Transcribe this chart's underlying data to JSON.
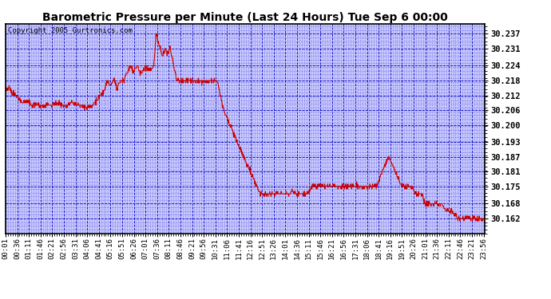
{
  "title": "Barometric Pressure per Minute (Last 24 Hours) Tue Sep 6 00:00",
  "copyright": "Copyright 2005 Gurtronics.com",
  "yticks": [
    30.162,
    30.168,
    30.175,
    30.181,
    30.187,
    30.193,
    30.2,
    30.206,
    30.212,
    30.218,
    30.224,
    30.231,
    30.237
  ],
  "ylim": [
    30.156,
    30.241
  ],
  "background_color": "#ffffff",
  "plot_bg_color": "#c8c8ff",
  "grid_color": "#0000bb",
  "line_color": "#cc0000",
  "title_color": "#000000",
  "x_labels": [
    "00:01",
    "00:36",
    "01:11",
    "01:46",
    "02:21",
    "02:56",
    "03:31",
    "04:06",
    "04:41",
    "05:16",
    "05:51",
    "06:26",
    "07:01",
    "07:36",
    "08:11",
    "08:46",
    "09:21",
    "09:56",
    "10:31",
    "11:06",
    "11:41",
    "12:16",
    "12:51",
    "13:26",
    "14:01",
    "14:36",
    "15:11",
    "15:46",
    "16:21",
    "16:56",
    "17:31",
    "18:06",
    "18:41",
    "19:16",
    "19:51",
    "20:26",
    "21:01",
    "21:36",
    "22:11",
    "22:46",
    "23:21",
    "23:56"
  ],
  "keypoints": [
    [
      0,
      30.213
    ],
    [
      10,
      30.215
    ],
    [
      20,
      30.213
    ],
    [
      35,
      30.212
    ],
    [
      50,
      30.209
    ],
    [
      65,
      30.21
    ],
    [
      80,
      30.208
    ],
    [
      95,
      30.208
    ],
    [
      110,
      30.207
    ],
    [
      125,
      30.208
    ],
    [
      140,
      30.208
    ],
    [
      155,
      30.209
    ],
    [
      170,
      30.208
    ],
    [
      185,
      30.208
    ],
    [
      200,
      30.209
    ],
    [
      215,
      30.208
    ],
    [
      230,
      30.208
    ],
    [
      245,
      30.207
    ],
    [
      260,
      30.208
    ],
    [
      275,
      30.21
    ],
    [
      285,
      30.212
    ],
    [
      295,
      30.213
    ],
    [
      305,
      30.218
    ],
    [
      315,
      30.216
    ],
    [
      325,
      30.219
    ],
    [
      335,
      30.215
    ],
    [
      345,
      30.218
    ],
    [
      355,
      30.218
    ],
    [
      365,
      30.221
    ],
    [
      375,
      30.224
    ],
    [
      385,
      30.222
    ],
    [
      395,
      30.224
    ],
    [
      405,
      30.221
    ],
    [
      415,
      30.222
    ],
    [
      425,
      30.224
    ],
    [
      435,
      30.222
    ],
    [
      445,
      30.224
    ],
    [
      452,
      30.237
    ],
    [
      458,
      30.234
    ],
    [
      465,
      30.231
    ],
    [
      472,
      30.228
    ],
    [
      480,
      30.231
    ],
    [
      488,
      30.229
    ],
    [
      495,
      30.231
    ],
    [
      505,
      30.224
    ],
    [
      515,
      30.218
    ],
    [
      525,
      30.218
    ],
    [
      540,
      30.218
    ],
    [
      555,
      30.218
    ],
    [
      570,
      30.218
    ],
    [
      585,
      30.218
    ],
    [
      600,
      30.218
    ],
    [
      615,
      30.218
    ],
    [
      625,
      30.218
    ],
    [
      635,
      30.218
    ],
    [
      645,
      30.212
    ],
    [
      655,
      30.206
    ],
    [
      665,
      30.203
    ],
    [
      675,
      30.2
    ],
    [
      685,
      30.196
    ],
    [
      695,
      30.193
    ],
    [
      705,
      30.19
    ],
    [
      715,
      30.187
    ],
    [
      725,
      30.184
    ],
    [
      735,
      30.181
    ],
    [
      745,
      30.178
    ],
    [
      755,
      30.175
    ],
    [
      765,
      30.172
    ],
    [
      775,
      30.172
    ],
    [
      785,
      30.172
    ],
    [
      800,
      30.172
    ],
    [
      815,
      30.172
    ],
    [
      830,
      30.172
    ],
    [
      845,
      30.172
    ],
    [
      860,
      30.173
    ],
    [
      875,
      30.172
    ],
    [
      890,
      30.172
    ],
    [
      905,
      30.172
    ],
    [
      920,
      30.175
    ],
    [
      935,
      30.175
    ],
    [
      950,
      30.175
    ],
    [
      965,
      30.175
    ],
    [
      980,
      30.175
    ],
    [
      995,
      30.175
    ],
    [
      1010,
      30.175
    ],
    [
      1025,
      30.175
    ],
    [
      1040,
      30.175
    ],
    [
      1055,
      30.175
    ],
    [
      1070,
      30.175
    ],
    [
      1085,
      30.175
    ],
    [
      1100,
      30.175
    ],
    [
      1115,
      30.175
    ],
    [
      1130,
      30.181
    ],
    [
      1140,
      30.184
    ],
    [
      1150,
      30.187
    ],
    [
      1160,
      30.184
    ],
    [
      1170,
      30.181
    ],
    [
      1180,
      30.178
    ],
    [
      1190,
      30.175
    ],
    [
      1200,
      30.175
    ],
    [
      1210,
      30.175
    ],
    [
      1220,
      30.175
    ],
    [
      1230,
      30.172
    ],
    [
      1240,
      30.172
    ],
    [
      1250,
      30.172
    ],
    [
      1260,
      30.168
    ],
    [
      1270,
      30.168
    ],
    [
      1280,
      30.168
    ],
    [
      1295,
      30.168
    ],
    [
      1310,
      30.168
    ],
    [
      1325,
      30.165
    ],
    [
      1340,
      30.165
    ],
    [
      1355,
      30.162
    ],
    [
      1370,
      30.162
    ],
    [
      1385,
      30.162
    ],
    [
      1400,
      30.162
    ],
    [
      1415,
      30.162
    ],
    [
      1430,
      30.162
    ],
    [
      1439,
      30.162
    ]
  ]
}
